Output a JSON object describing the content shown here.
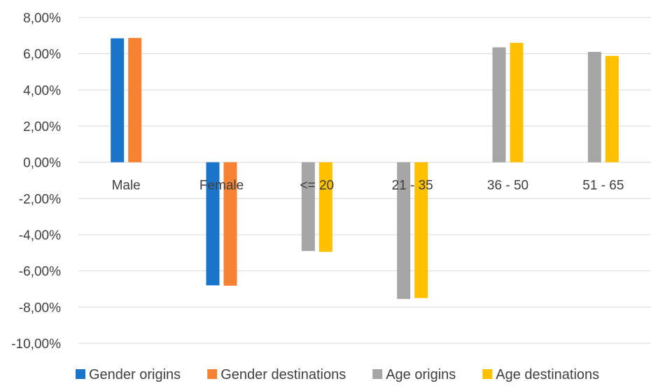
{
  "chart_data": {
    "type": "bar",
    "title": "",
    "xlabel": "",
    "ylabel": "",
    "categories": [
      "Male",
      "Female",
      "<= 20",
      "21 - 35",
      "36 - 50",
      "51 - 65"
    ],
    "series": [
      {
        "name": "Gender origins",
        "color": "#1a74c9",
        "values": [
          6.85,
          -6.8,
          null,
          null,
          null,
          null
        ]
      },
      {
        "name": "Gender destinations",
        "color": "#f58232",
        "values": [
          6.87,
          -6.82,
          null,
          null,
          null,
          null
        ]
      },
      {
        "name": "Age origins",
        "color": "#a5a5a5",
        "values": [
          null,
          null,
          -4.9,
          -7.55,
          6.35,
          6.1
        ]
      },
      {
        "name": "Age destinations",
        "color": "#ffc000",
        "values": [
          null,
          null,
          -4.95,
          -7.5,
          6.6,
          5.88
        ]
      }
    ],
    "ylim": [
      -10,
      8
    ],
    "yticks": [
      8,
      6,
      4,
      2,
      0,
      -2,
      -4,
      -6,
      -8,
      -10
    ],
    "ytick_labels": [
      "8,00%",
      "6,00%",
      "4,00%",
      "2,00%",
      "0,00%",
      "-2,00%",
      "-4,00%",
      "-6,00%",
      "-8,00%",
      "-10,00%"
    ],
    "grid": true,
    "legend_position": "bottom"
  }
}
